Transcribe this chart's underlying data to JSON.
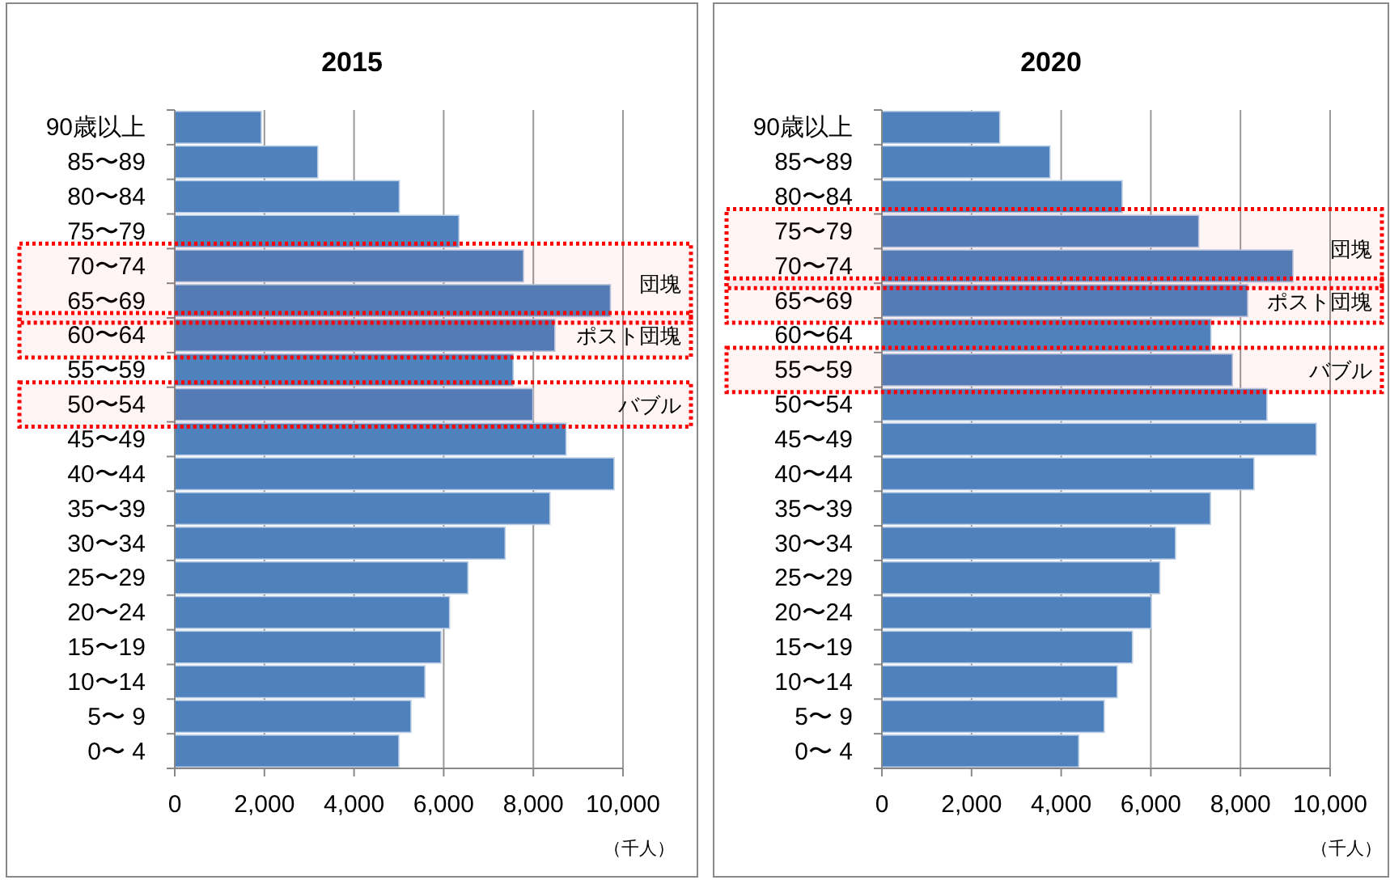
{
  "chart_data": [
    {
      "type": "bar",
      "orientation": "horizontal",
      "title": "2015",
      "categories": [
        "90歳以上",
        "85〜89",
        "80〜84",
        "75〜79",
        "70〜74",
        "65〜69",
        "60〜64",
        "55〜59",
        "50〜54",
        "45〜49",
        "40〜44",
        "35〜39",
        "30〜34",
        "25〜29",
        "20〜24",
        "15〜19",
        "10〜14",
        "5〜 9",
        "0〜 4"
      ],
      "values": [
        1930,
        3190,
        5010,
        6340,
        7780,
        9720,
        8480,
        7550,
        7990,
        8730,
        9800,
        8370,
        7370,
        6540,
        6130,
        5940,
        5580,
        5270,
        5000
      ],
      "color": "#4f81bd",
      "xlim": [
        0,
        10000
      ],
      "xticks": [
        {
          "value": 0,
          "label": "0"
        },
        {
          "value": 2000,
          "label": "2,000"
        },
        {
          "value": 4000,
          "label": "4,000"
        },
        {
          "value": 6000,
          "label": "6,000"
        },
        {
          "value": 8000,
          "label": "8,000"
        },
        {
          "value": 10000,
          "label": "10,000"
        }
      ],
      "grid": "x",
      "bands": [
        {
          "axis": "y",
          "from": "70〜74",
          "to": "65〜69",
          "label": "団塊",
          "color": "#ff0000"
        },
        {
          "axis": "y",
          "from": "60〜64",
          "to": "60〜64",
          "label": "ポスト団塊",
          "color": "#ff0000"
        },
        {
          "axis": "y",
          "from": "50〜54",
          "to": "50〜54",
          "label": "バブル",
          "color": "#ff0000"
        }
      ],
      "annotations": [
        "（千人）"
      ]
    },
    {
      "type": "bar",
      "orientation": "horizontal",
      "title": "2020",
      "categories": [
        "90歳以上",
        "85〜89",
        "80〜84",
        "75〜79",
        "70〜74",
        "65〜69",
        "60〜64",
        "55〜59",
        "50〜54",
        "45〜49",
        "40〜44",
        "35〜39",
        "30〜34",
        "25〜29",
        "20〜24",
        "15〜19",
        "10〜14",
        "5〜 9",
        "0〜 4"
      ],
      "values": [
        2630,
        3750,
        5360,
        7070,
        9170,
        8160,
        7340,
        7820,
        8590,
        9690,
        8300,
        7330,
        6550,
        6200,
        6010,
        5590,
        5250,
        4960,
        4390
      ],
      "color": "#4f81bd",
      "xlim": [
        0,
        10000
      ],
      "xticks": [
        {
          "value": 0,
          "label": "0"
        },
        {
          "value": 2000,
          "label": "2,000"
        },
        {
          "value": 4000,
          "label": "4,000"
        },
        {
          "value": 6000,
          "label": "6,000"
        },
        {
          "value": 8000,
          "label": "8,000"
        },
        {
          "value": 10000,
          "label": "10,000"
        }
      ],
      "grid": "x",
      "bands": [
        {
          "axis": "y",
          "from": "75〜79",
          "to": "70〜74",
          "label": "団塊",
          "color": "#ff0000"
        },
        {
          "axis": "y",
          "from": "65〜69",
          "to": "65〜69",
          "label": "ポスト団塊",
          "color": "#ff0000"
        },
        {
          "axis": "y",
          "from": "55〜59",
          "to": "55〜59",
          "label": "バブル",
          "color": "#ff0000"
        }
      ],
      "annotations": [
        "（千人）"
      ]
    }
  ]
}
